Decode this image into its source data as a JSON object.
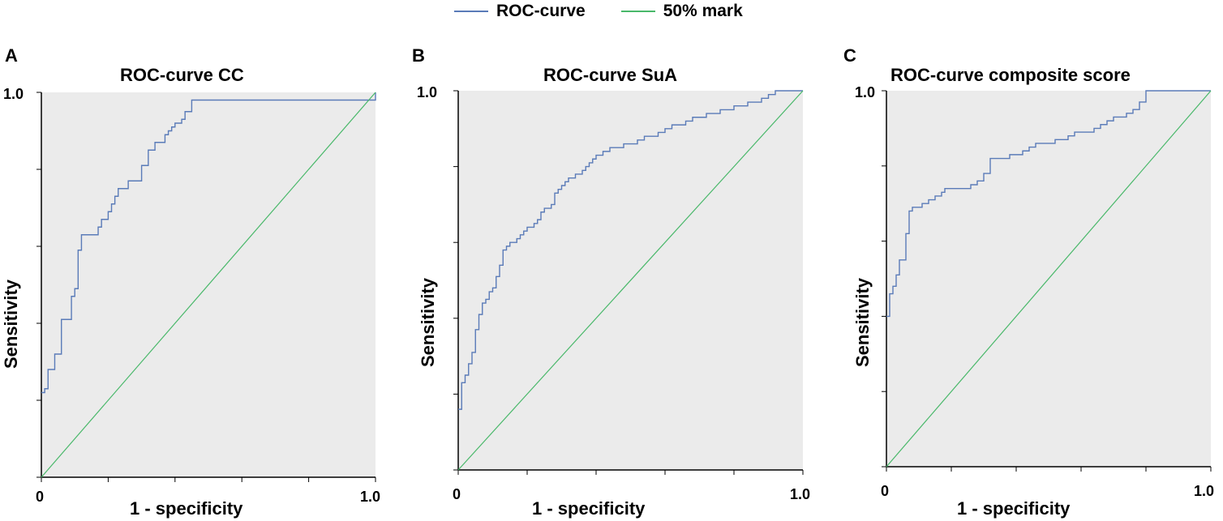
{
  "legend": {
    "items": [
      {
        "label": "ROC-curve",
        "color": "#5a7bb8"
      },
      {
        "label": "50% mark",
        "color": "#49b86a"
      }
    ]
  },
  "colors": {
    "plot_bg": "#ebebeb",
    "roc": "#5a7bb8",
    "reference": "#49b86a",
    "axis": "#000000"
  },
  "panels": [
    {
      "letter": "A",
      "title": "ROC-curve CC",
      "ylabel": "Sensitivity",
      "xlabel": "1 - specificity",
      "x_tick_labels": {
        "start": "0",
        "end": "1.0"
      },
      "y_tick_label_top": "1.0"
    },
    {
      "letter": "B",
      "title": "ROC-curve SuA",
      "ylabel": "Sensitivity",
      "xlabel": "1 - specificity",
      "x_tick_labels": {
        "start": "0",
        "end": "1.0"
      },
      "y_tick_label_top": "1.0"
    },
    {
      "letter": "C",
      "title": "ROC-curve composite score",
      "ylabel": "Sensitivity",
      "xlabel": "1 - specificity",
      "x_tick_labels": {
        "start": "0",
        "end": "1.0"
      },
      "y_tick_label_top": "1.0"
    }
  ],
  "chart_data": [
    {
      "type": "line",
      "title": "ROC-curve CC",
      "xlabel": "1 - specificity",
      "ylabel": "Sensitivity",
      "xlim": [
        0,
        1
      ],
      "ylim": [
        0,
        1
      ],
      "grid": false,
      "series": [
        {
          "name": "ROC-curve",
          "kind": "step",
          "x": [
            0,
            0.01,
            0.02,
            0.03,
            0.04,
            0.05,
            0.06,
            0.07,
            0.08,
            0.09,
            0.1,
            0.11,
            0.12,
            0.13,
            0.14,
            0.15,
            0.16,
            0.17,
            0.18,
            0.19,
            0.2,
            0.21,
            0.22,
            0.23,
            0.24,
            0.25,
            0.26,
            0.27,
            0.28,
            0.29,
            0.3,
            0.31,
            0.32,
            0.33,
            0.34,
            0.35,
            0.36,
            0.37,
            0.38,
            0.39,
            0.4,
            0.41,
            0.42,
            0.43,
            0.44,
            0.45,
            0.47,
            0.5,
            0.6,
            0.7,
            0.8,
            0.9,
            0.98,
            1.0
          ],
          "y": [
            0.22,
            0.23,
            0.28,
            0.28,
            0.32,
            0.32,
            0.41,
            0.41,
            0.41,
            0.47,
            0.49,
            0.59,
            0.63,
            0.63,
            0.63,
            0.63,
            0.63,
            0.65,
            0.67,
            0.67,
            0.69,
            0.71,
            0.73,
            0.75,
            0.75,
            0.75,
            0.77,
            0.77,
            0.77,
            0.77,
            0.81,
            0.81,
            0.85,
            0.85,
            0.87,
            0.87,
            0.87,
            0.89,
            0.9,
            0.91,
            0.92,
            0.92,
            0.93,
            0.95,
            0.95,
            0.98,
            0.98,
            0.98,
            0.98,
            0.98,
            0.98,
            0.98,
            0.98,
            1.0
          ]
        },
        {
          "name": "50% mark",
          "kind": "line",
          "x": [
            0,
            1
          ],
          "y": [
            0,
            1
          ]
        }
      ]
    },
    {
      "type": "line",
      "title": "ROC-curve SuA",
      "xlabel": "1 - specificity",
      "ylabel": "Sensitivity",
      "xlim": [
        0,
        1
      ],
      "ylim": [
        0,
        1
      ],
      "grid": false,
      "series": [
        {
          "name": "ROC-curve",
          "kind": "step",
          "x": [
            0,
            0.01,
            0.02,
            0.03,
            0.04,
            0.05,
            0.06,
            0.07,
            0.08,
            0.09,
            0.1,
            0.11,
            0.12,
            0.13,
            0.14,
            0.15,
            0.16,
            0.17,
            0.18,
            0.19,
            0.2,
            0.21,
            0.22,
            0.23,
            0.24,
            0.25,
            0.26,
            0.27,
            0.28,
            0.29,
            0.3,
            0.31,
            0.32,
            0.33,
            0.34,
            0.35,
            0.36,
            0.37,
            0.38,
            0.39,
            0.4,
            0.42,
            0.44,
            0.46,
            0.48,
            0.5,
            0.52,
            0.54,
            0.56,
            0.58,
            0.6,
            0.62,
            0.64,
            0.66,
            0.68,
            0.7,
            0.72,
            0.74,
            0.76,
            0.78,
            0.8,
            0.82,
            0.84,
            0.86,
            0.88,
            0.9,
            0.92,
            0.94,
            0.96,
            0.98,
            1.0
          ],
          "y": [
            0.16,
            0.23,
            0.25,
            0.28,
            0.31,
            0.37,
            0.41,
            0.44,
            0.45,
            0.47,
            0.48,
            0.51,
            0.54,
            0.58,
            0.59,
            0.6,
            0.6,
            0.61,
            0.62,
            0.63,
            0.64,
            0.64,
            0.65,
            0.66,
            0.68,
            0.69,
            0.69,
            0.7,
            0.73,
            0.74,
            0.75,
            0.76,
            0.77,
            0.77,
            0.78,
            0.78,
            0.79,
            0.8,
            0.81,
            0.82,
            0.83,
            0.84,
            0.85,
            0.85,
            0.86,
            0.86,
            0.87,
            0.88,
            0.88,
            0.89,
            0.9,
            0.91,
            0.91,
            0.92,
            0.93,
            0.93,
            0.94,
            0.94,
            0.95,
            0.95,
            0.96,
            0.96,
            0.97,
            0.97,
            0.98,
            0.99,
            1.0,
            1.0,
            1.0,
            1.0,
            1.0
          ]
        },
        {
          "name": "50% mark",
          "kind": "line",
          "x": [
            0,
            1
          ],
          "y": [
            0,
            1
          ]
        }
      ]
    },
    {
      "type": "line",
      "title": "ROC-curve composite score",
      "xlabel": "1 - specificity",
      "ylabel": "Sensitivity",
      "xlim": [
        0,
        1
      ],
      "ylim": [
        0,
        1
      ],
      "grid": false,
      "series": [
        {
          "name": "ROC-curve",
          "kind": "step",
          "x": [
            0,
            0.01,
            0.02,
            0.03,
            0.04,
            0.05,
            0.06,
            0.07,
            0.08,
            0.09,
            0.1,
            0.11,
            0.12,
            0.13,
            0.14,
            0.15,
            0.16,
            0.17,
            0.18,
            0.19,
            0.2,
            0.22,
            0.24,
            0.26,
            0.28,
            0.3,
            0.32,
            0.34,
            0.36,
            0.38,
            0.4,
            0.42,
            0.44,
            0.46,
            0.48,
            0.5,
            0.52,
            0.54,
            0.56,
            0.58,
            0.6,
            0.62,
            0.64,
            0.66,
            0.68,
            0.7,
            0.72,
            0.74,
            0.76,
            0.78,
            0.8,
            0.9,
            1.0
          ],
          "y": [
            0.4,
            0.46,
            0.48,
            0.51,
            0.55,
            0.55,
            0.62,
            0.68,
            0.69,
            0.69,
            0.69,
            0.7,
            0.7,
            0.71,
            0.71,
            0.72,
            0.72,
            0.73,
            0.74,
            0.74,
            0.74,
            0.74,
            0.74,
            0.75,
            0.76,
            0.78,
            0.82,
            0.82,
            0.82,
            0.83,
            0.83,
            0.84,
            0.85,
            0.86,
            0.86,
            0.86,
            0.87,
            0.87,
            0.88,
            0.89,
            0.89,
            0.89,
            0.9,
            0.91,
            0.92,
            0.93,
            0.93,
            0.94,
            0.95,
            0.97,
            1.0,
            1.0,
            1.0
          ]
        },
        {
          "name": "50% mark",
          "kind": "line",
          "x": [
            0,
            1
          ],
          "y": [
            0,
            1
          ]
        }
      ]
    }
  ]
}
